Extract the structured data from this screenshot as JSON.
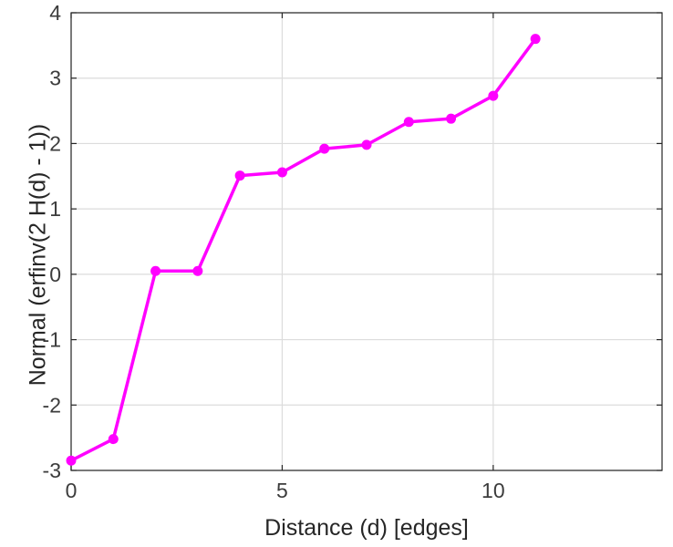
{
  "chart_data": {
    "type": "line",
    "title": "",
    "xlabel": "Distance (d) [edges]",
    "ylabel": "Normal (erfinv(2 H(d) - 1))",
    "x": [
      0,
      1,
      2,
      3,
      4,
      5,
      6,
      7,
      8,
      9,
      10,
      11
    ],
    "y": [
      -2.85,
      -2.52,
      0.05,
      0.05,
      1.51,
      1.56,
      1.92,
      1.98,
      2.33,
      2.38,
      2.73,
      3.6
    ],
    "xlim": [
      0,
      14
    ],
    "ylim": [
      -3,
      4
    ],
    "xticks": [
      0,
      5,
      10
    ],
    "yticks": [
      -3,
      -2,
      -1,
      0,
      1,
      2,
      3,
      4
    ],
    "grid": true,
    "legend": null,
    "line_color": "#FF00FF",
    "marker": "circle",
    "marker_color": "#FF00FF",
    "axis_color": "#262626",
    "tick_label_color": "#3c3c3c",
    "grid_color": "#dcdcdc",
    "background": "#ffffff"
  }
}
